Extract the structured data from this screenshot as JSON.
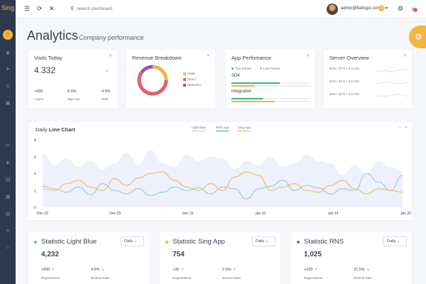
{
  "app": {
    "logo": "Sing"
  },
  "colors": {
    "accent": "#f6b53f",
    "sidebar": "#2d3a4e",
    "light_blue": "#5ab4c9",
    "sing_app": "#f6b53f",
    "rns": "#8b58c4",
    "green": "#36b37e",
    "red": "#e55c6a"
  },
  "sidebar": {
    "items": [
      {
        "icon": "home-icon",
        "glyph": "⌂"
      },
      {
        "icon": "trophy-icon",
        "glyph": "♜"
      },
      {
        "icon": "send-icon",
        "glyph": "➤"
      },
      {
        "icon": "person-icon",
        "glyph": "♙"
      },
      {
        "icon": "box-icon",
        "glyph": "▣"
      },
      {
        "icon": "tools-icon",
        "glyph": "✂"
      },
      {
        "icon": "layers-icon",
        "glyph": "◈"
      },
      {
        "icon": "chart-icon",
        "glyph": "▤"
      },
      {
        "icon": "grid-icon",
        "glyph": "▦"
      },
      {
        "icon": "table-icon",
        "glyph": "▥"
      },
      {
        "icon": "list-icon",
        "glyph": "≡"
      },
      {
        "icon": "star-icon",
        "glyph": "☆"
      }
    ]
  },
  "header": {
    "search_placeholder": "Search Dashboard",
    "user_email": "admin@flatlogic.com",
    "user_badge": "13"
  },
  "page": {
    "title": "Analytics",
    "subtitle": "Company performance"
  },
  "visits": {
    "title": "Visits Today",
    "value": "4.332",
    "trend_icon": "↗",
    "stats": [
      {
        "value": "+830",
        "label": "Logins"
      },
      {
        "value": "0.5%",
        "label": "Sign Out"
      },
      {
        "value": "4.5%",
        "label": "Rate"
      }
    ]
  },
  "revenue": {
    "title": "Revenue Breakdown",
    "legend": [
      {
        "label": "SMM",
        "color": "#f6b53f"
      },
      {
        "label": "Direct",
        "color": "#e55c6a"
      },
      {
        "label": "Networks",
        "color": "#8b58c4"
      }
    ],
    "slices": [
      {
        "label": "SMM",
        "value": 25,
        "color": "#f6b53f"
      },
      {
        "label": "Direct",
        "value": 60,
        "color": "#e55c6a"
      },
      {
        "label": "Networks",
        "value": 15,
        "color": "#8b58c4"
      }
    ]
  },
  "app_perf": {
    "title": "App Perfomance",
    "legend": [
      {
        "label": "This Period",
        "color": "#36b37e"
      },
      {
        "label": "Last Period",
        "color": "#f6b53f"
      }
    ],
    "rows": [
      {
        "label": "SDK",
        "this": 0.62,
        "last": 0.3
      },
      {
        "label": "Integration",
        "this": 0.4,
        "last": 0.55
      }
    ]
  },
  "server": {
    "title": "Server Overview",
    "rows": [
      {
        "label": "60% / 37°C / 3.3 Ghz",
        "color": "#e55c6a"
      },
      {
        "label": "54% / 31°C / 3.3 Ghz",
        "color": "#5ab4c9"
      },
      {
        "label": "54% / 31°C / 3.3 Ghz",
        "color": "#5ab4c9"
      }
    ]
  },
  "daily_chart": {
    "title_normal": "Daily",
    "title_bold": "Line Chart",
    "legend": [
      {
        "label": "Light Blue",
        "color": "#c5cbd6"
      },
      {
        "label": "RNS App",
        "color": "#36b37e"
      },
      {
        "label": "Sing App",
        "color": "#f6b53f"
      }
    ],
    "controls": {
      "minimize": "—",
      "close": "✕"
    }
  },
  "chart_data": {
    "type": "line",
    "y_ticks": [
      "0",
      "2",
      "4",
      "6",
      "8"
    ],
    "ylim": [
      0,
      8
    ],
    "x_ticks": [
      "Dec 19",
      "Dec 25",
      "Dec 31",
      "Jan 10",
      "Jan 14",
      "Jan 20"
    ],
    "series": [
      {
        "name": "Light Blue",
        "type": "area",
        "color": "#eef0fb",
        "values": [
          6.5,
          5.0,
          5.8,
          4.8,
          5.5,
          4.5,
          5.2,
          6.5,
          5.0,
          6.8,
          5.2,
          4.8,
          6.2,
          5.5,
          6.0,
          5.8,
          4.5,
          5.5,
          5.0,
          6.0,
          4.8,
          5.2,
          6.2,
          5.5,
          5.2,
          3.8,
          5.0,
          4.0,
          5.5,
          4.8,
          4.2
        ]
      },
      {
        "name": "RNS App",
        "color": "#5ab4c9",
        "values": [
          2.5,
          2.2,
          1.8,
          2.4,
          1.5,
          2.8,
          2.0,
          1.6,
          2.2,
          1.4,
          1.8,
          2.4,
          2.0,
          2.3,
          1.6,
          2.4,
          2.2,
          1.0,
          2.2,
          2.5,
          3.2,
          2.0,
          2.6,
          2.3,
          1.6,
          2.2,
          2.0,
          4.0,
          3.0,
          2.0,
          3.8
        ]
      },
      {
        "name": "Sing App",
        "color": "#f6b53f",
        "values": [
          2.2,
          2.0,
          2.8,
          3.2,
          2.4,
          2.0,
          3.4,
          2.6,
          3.5,
          4.0,
          4.2,
          3.2,
          2.4,
          2.0,
          2.8,
          2.0,
          3.6,
          4.2,
          3.8,
          2.0,
          2.4,
          2.8,
          2.0,
          1.8,
          2.6,
          3.2,
          2.2,
          1.6,
          2.2,
          2.0,
          1.8
        ]
      }
    ]
  },
  "stat_cards": [
    {
      "title": "Statistic Light Blue",
      "dot_color": "#5ab4c9",
      "period": "Daily",
      "value": "4,232",
      "items": [
        {
          "value": "+830",
          "arrow": "↗",
          "arrow_color": "#36b37e",
          "label": "Registrations"
        },
        {
          "value": "4.5%",
          "arrow": "↘",
          "arrow_color": "#e55c6a",
          "label": "Bounce Rate"
        }
      ]
    },
    {
      "title": "Statistic Sing App",
      "dot_color": "#f6b53f",
      "period": "Daily",
      "value": "754",
      "items": [
        {
          "value": "+30",
          "arrow": "↗",
          "arrow_color": "#36b37e",
          "label": "Registrations"
        },
        {
          "value": "2.5%",
          "arrow": "↗",
          "arrow_color": "#36b37e",
          "label": "Bounce Rate"
        }
      ]
    },
    {
      "title": "Statistic RNS",
      "dot_color": "#8b58c4",
      "period": "Daily",
      "value": "1,025",
      "items": [
        {
          "value": "+230",
          "arrow": "↗",
          "arrow_color": "#36b37e",
          "label": "Registrations"
        },
        {
          "value": "21.5%",
          "arrow": "↘",
          "arrow_color": "#e55c6a",
          "label": "Bounce Rate"
        }
      ]
    }
  ]
}
